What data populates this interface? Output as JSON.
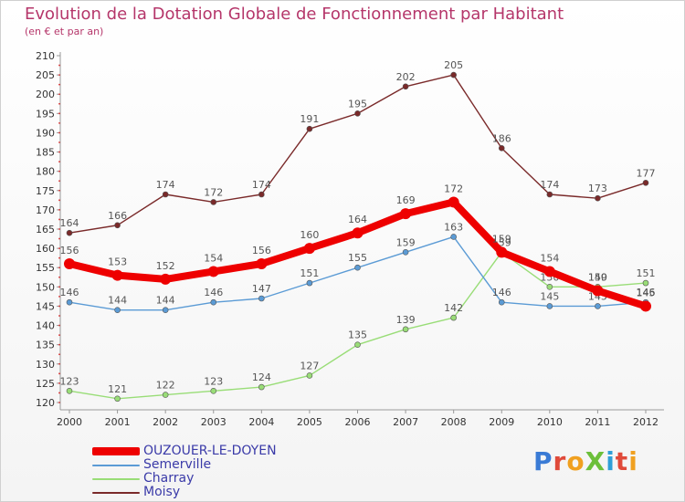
{
  "title": "Evolution de la Dotation Globale de Fonctionnement par Habitant",
  "subtitle": "(en € et par an)",
  "logo": "ProXiti",
  "chart_data": {
    "type": "line",
    "title": "Evolution de la Dotation Globale de Fonctionnement par Habitant",
    "subtitle": "(en € et par an)",
    "x": [
      "2000",
      "2001",
      "2002",
      "2003",
      "2004",
      "2005",
      "2006",
      "2007",
      "2008",
      "2009",
      "2010",
      "2011",
      "2012"
    ],
    "ylim": [
      120,
      210
    ],
    "yticks": [
      120,
      125,
      130,
      135,
      140,
      145,
      150,
      155,
      160,
      165,
      170,
      175,
      180,
      185,
      190,
      195,
      200,
      205,
      210
    ],
    "grid": false,
    "legend": "bottom-left",
    "series": [
      {
        "name": "Moisy",
        "color": "#7a2a2a",
        "values": [
          164,
          166,
          174,
          172,
          174,
          191,
          195,
          202,
          205,
          186,
          174,
          173,
          177
        ]
      },
      {
        "name": "Charray",
        "color": "#99dd77",
        "values": [
          123,
          121,
          122,
          123,
          124,
          127,
          135,
          139,
          142,
          159,
          150,
          150,
          151
        ]
      },
      {
        "name": "Semerville",
        "color": "#5b9bd5",
        "values": [
          146,
          144,
          144,
          146,
          147,
          151,
          155,
          159,
          163,
          146,
          145,
          145,
          146
        ]
      },
      {
        "name": "OUZOUER-LE-DOYEN",
        "color": "#ee0000",
        "values": [
          156,
          153,
          152,
          154,
          156,
          160,
          164,
          169,
          172,
          159,
          154,
          149,
          145
        ]
      }
    ]
  }
}
